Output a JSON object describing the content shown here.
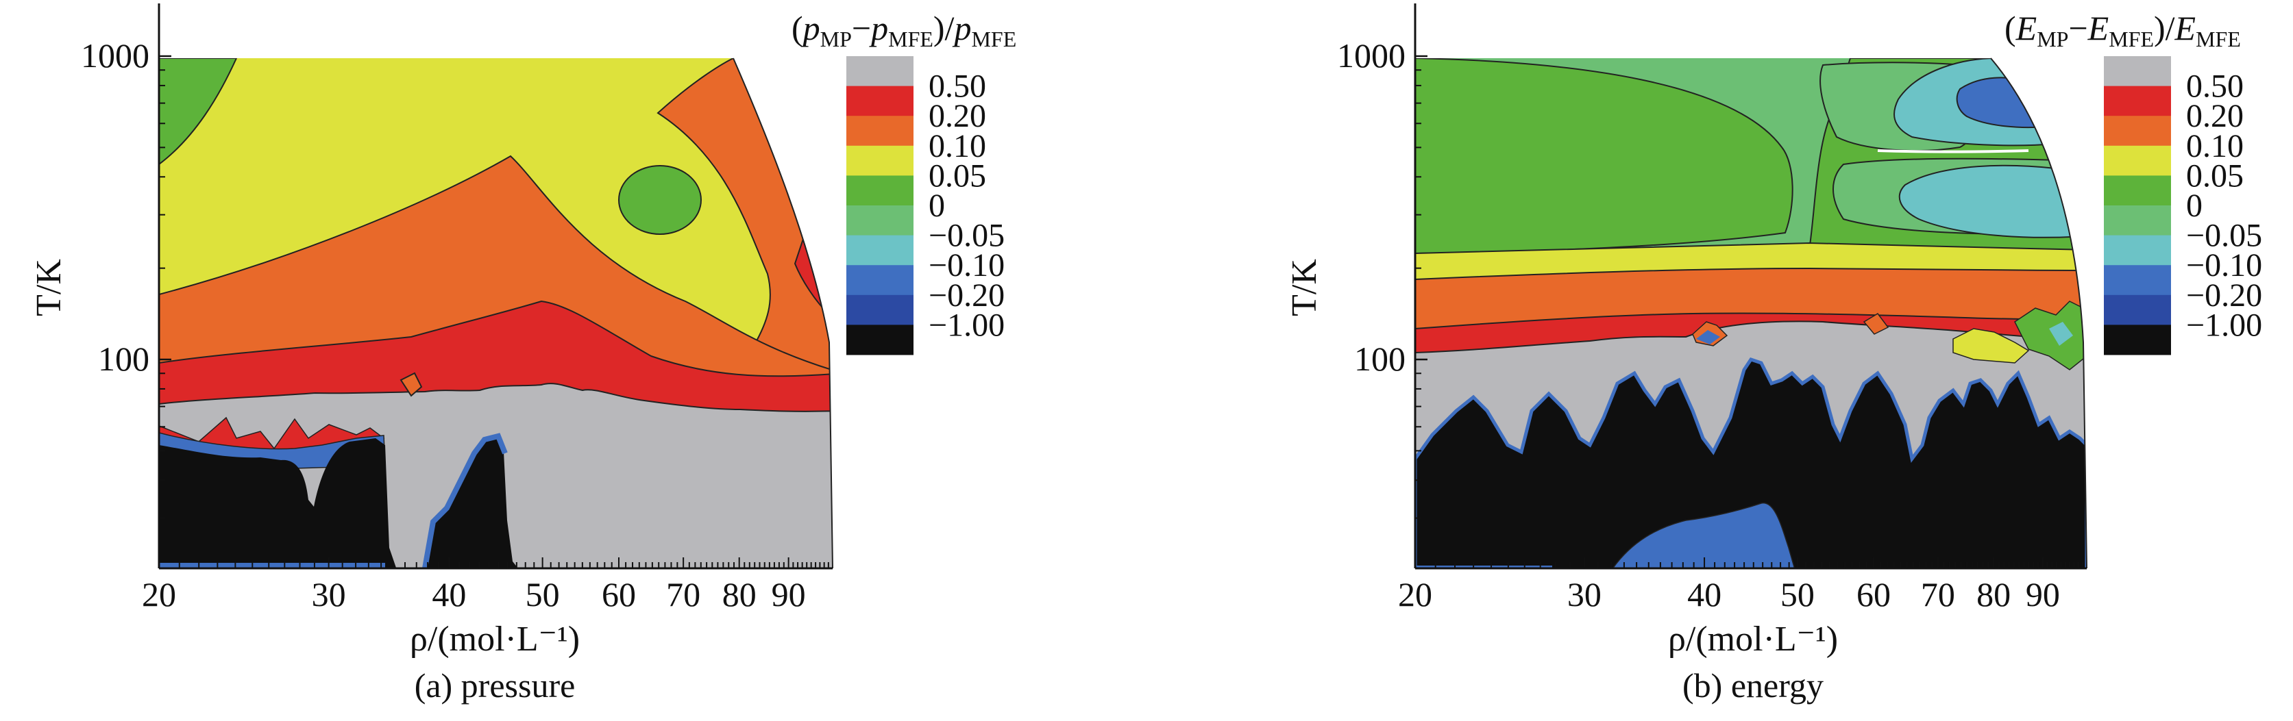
{
  "chart_data": [
    {
      "type": "heatmap",
      "caption": "(a) pressure",
      "colorbar_title": "(pMP−pMFE)/pMFE",
      "colorbar_title_parts": {
        "a": "p",
        "a_sub": "MP",
        "b": "p",
        "b_sub": "MFE",
        "c": "p",
        "c_sub": "MFE"
      },
      "xlabel": "ρ/(mol·L⁻¹)",
      "ylabel": "T/K",
      "x_scale": "log",
      "y_scale": "log",
      "x_ticks": [
        20,
        30,
        40,
        50,
        60,
        70,
        80,
        90
      ],
      "y_ticks": [
        100,
        1000
      ],
      "xlim": [
        20,
        100
      ],
      "ylim": [
        21,
        1500
      ],
      "levels": [
        "0.50",
        "0.20",
        "0.10",
        "0.05",
        "0",
        "−0.05",
        "−0.10",
        "−0.20",
        "−1.00"
      ],
      "level_colors": [
        "#b8b8bb",
        "#dd2828",
        "#e8692a",
        "#dde23c",
        "#5db33a",
        "#6cbf74",
        "#6cc3c6",
        "#3f6fc1",
        "#2c4aa3",
        "#0f0f0f"
      ]
    },
    {
      "type": "heatmap",
      "caption": "(b) energy",
      "colorbar_title": "(EMP−EMFE)/EMFE",
      "colorbar_title_parts": {
        "a": "E",
        "a_sub": "MP",
        "b": "E",
        "b_sub": "MFE",
        "c": "E",
        "c_sub": "MFE"
      },
      "xlabel": "ρ/(mol·L⁻¹)",
      "ylabel": "T/K",
      "x_scale": "log",
      "y_scale": "log",
      "x_ticks": [
        20,
        30,
        40,
        50,
        60,
        70,
        80,
        90
      ],
      "y_ticks": [
        100,
        1000
      ],
      "xlim": [
        20,
        100
      ],
      "ylim": [
        21,
        1500
      ],
      "levels": [
        "0.50",
        "0.20",
        "0.10",
        "0.05",
        "0",
        "−0.05",
        "−0.10",
        "−0.20",
        "−1.00"
      ],
      "level_colors": [
        "#b8b8bb",
        "#dd2828",
        "#e8692a",
        "#dde23c",
        "#5db33a",
        "#6cbf74",
        "#6cc3c6",
        "#3f6fc1",
        "#2c4aa3",
        "#0f0f0f"
      ]
    }
  ]
}
